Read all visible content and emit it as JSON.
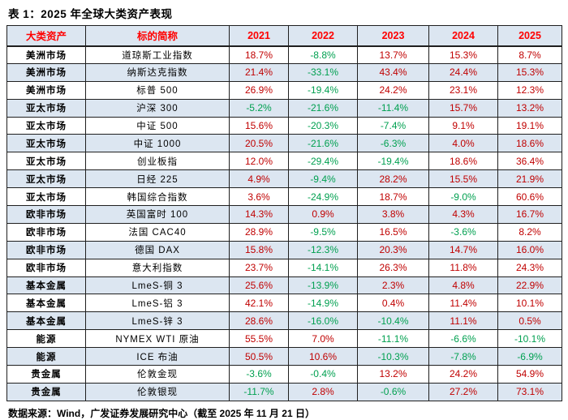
{
  "page": {
    "title": "表 1：2025 年全球大类资产表现",
    "footnote": "数据来源：Wind，广发证券发展研究中心（截至 2025 年 11 月 21 日）"
  },
  "chart_data": {
    "type": "table",
    "title": "2025 年全球大类资产表现",
    "columns": [
      "大类资产",
      "标的简称",
      "2021",
      "2022",
      "2023",
      "2024",
      "2025"
    ],
    "rows": [
      {
        "category": "美洲市场",
        "name": "道琼斯工业指数",
        "values": [
          "18.7%",
          "-8.8%",
          "13.7%",
          "15.3%",
          "8.7%"
        ]
      },
      {
        "category": "美洲市场",
        "name": "纳斯达克指数",
        "values": [
          "21.4%",
          "-33.1%",
          "43.4%",
          "24.4%",
          "15.3%"
        ]
      },
      {
        "category": "美洲市场",
        "name": "标普 500",
        "values": [
          "26.9%",
          "-19.4%",
          "24.2%",
          "23.1%",
          "12.3%"
        ]
      },
      {
        "category": "亚太市场",
        "name": "沪深 300",
        "values": [
          "-5.2%",
          "-21.6%",
          "-11.4%",
          "15.7%",
          "13.2%"
        ]
      },
      {
        "category": "亚太市场",
        "name": "中证 500",
        "values": [
          "15.6%",
          "-20.3%",
          "-7.4%",
          "9.1%",
          "19.1%"
        ]
      },
      {
        "category": "亚太市场",
        "name": "中证 1000",
        "values": [
          "20.5%",
          "-21.6%",
          "-6.3%",
          "4.0%",
          "18.6%"
        ]
      },
      {
        "category": "亚太市场",
        "name": "创业板指",
        "values": [
          "12.0%",
          "-29.4%",
          "-19.4%",
          "18.6%",
          "36.4%"
        ]
      },
      {
        "category": "亚太市场",
        "name": "日经 225",
        "values": [
          "4.9%",
          "-9.4%",
          "28.2%",
          "15.5%",
          "21.9%"
        ]
      },
      {
        "category": "亚太市场",
        "name": "韩国综合指数",
        "values": [
          "3.6%",
          "-24.9%",
          "18.7%",
          "-9.0%",
          "60.6%"
        ]
      },
      {
        "category": "欧非市场",
        "name": "英国富时 100",
        "values": [
          "14.3%",
          "0.9%",
          "3.8%",
          "4.3%",
          "16.7%"
        ]
      },
      {
        "category": "欧非市场",
        "name": "法国 CAC40",
        "values": [
          "28.9%",
          "-9.5%",
          "16.5%",
          "-3.6%",
          "8.2%"
        ]
      },
      {
        "category": "欧非市场",
        "name": "德国 DAX",
        "values": [
          "15.8%",
          "-12.3%",
          "20.3%",
          "14.7%",
          "16.0%"
        ]
      },
      {
        "category": "欧非市场",
        "name": "意大利指数",
        "values": [
          "23.7%",
          "-14.1%",
          "26.3%",
          "11.8%",
          "24.3%"
        ]
      },
      {
        "category": "基本金属",
        "name": "LmeS-铜 3",
        "values": [
          "25.6%",
          "-13.9%",
          "2.3%",
          "4.8%",
          "22.9%"
        ]
      },
      {
        "category": "基本金属",
        "name": "LmeS-铝 3",
        "values": [
          "42.1%",
          "-14.9%",
          "0.4%",
          "11.4%",
          "10.1%"
        ]
      },
      {
        "category": "基本金属",
        "name": "LmeS-锌 3",
        "values": [
          "28.6%",
          "-16.0%",
          "-10.4%",
          "11.1%",
          "0.5%"
        ]
      },
      {
        "category": "能源",
        "name": "NYMEX WTI 原油",
        "values": [
          "55.5%",
          "7.0%",
          "-11.1%",
          "-6.6%",
          "-10.1%"
        ]
      },
      {
        "category": "能源",
        "name": "ICE 布油",
        "values": [
          "50.5%",
          "10.6%",
          "-10.3%",
          "-7.8%",
          "-6.9%"
        ]
      },
      {
        "category": "贵金属",
        "name": "伦敦金现",
        "values": [
          "-3.6%",
          "-0.4%",
          "13.2%",
          "24.2%",
          "54.9%"
        ]
      },
      {
        "category": "贵金属",
        "name": "伦敦银现",
        "values": [
          "-11.7%",
          "2.8%",
          "-0.6%",
          "27.2%",
          "73.1%"
        ]
      }
    ],
    "colors": {
      "positive_value": "#c00000",
      "negative_value": "#00a050",
      "header_text": "#ff0000",
      "alt_row_bg": "#dce6f1",
      "border": "#1f1f1f"
    },
    "layout": {
      "legend_position": "none",
      "grid": "full table grid, alternating light-blue row shading",
      "value_color_rule": "positive values red, negative values green"
    }
  }
}
